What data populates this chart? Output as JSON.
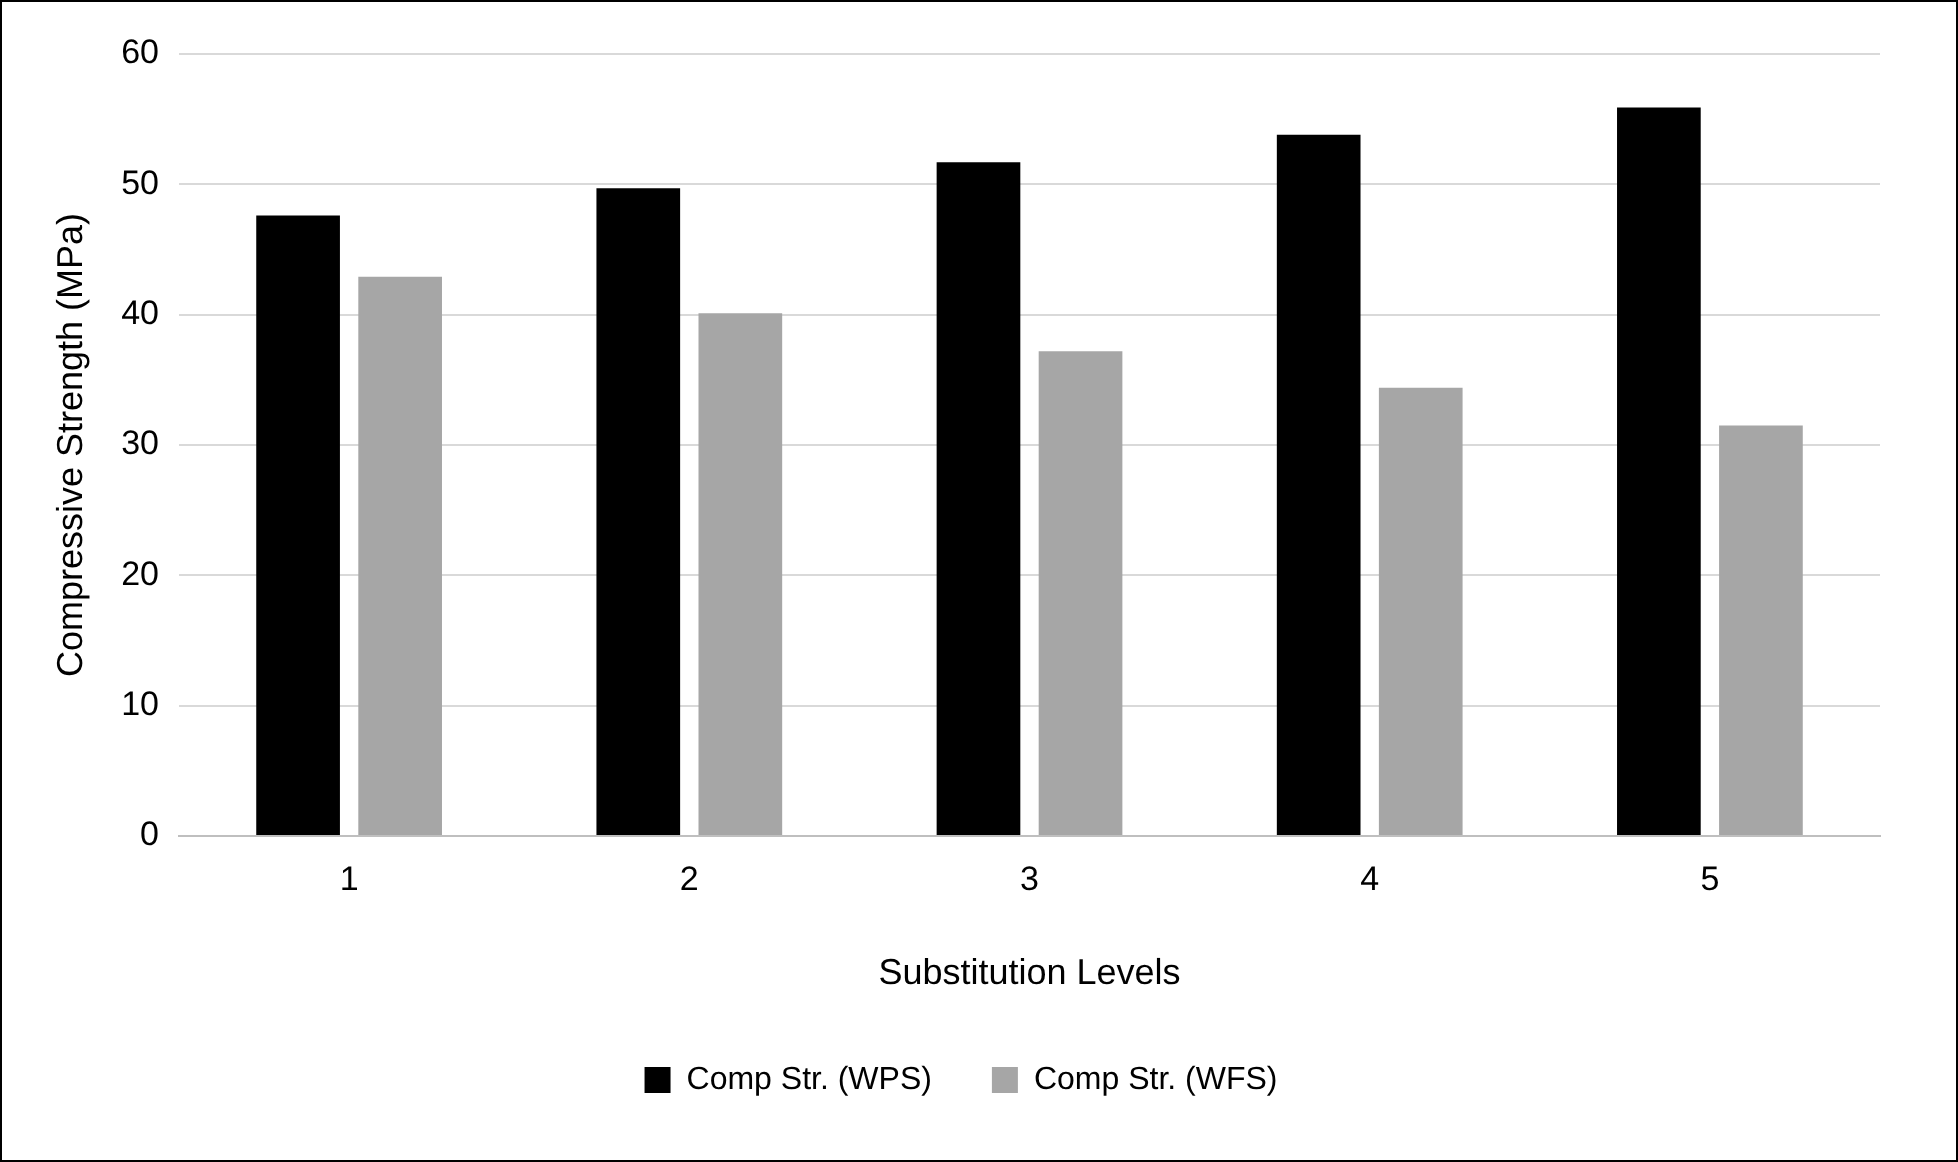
{
  "chart_data": {
    "type": "bar",
    "xlabel": "Substitution Levels",
    "ylabel": "Compressive Strength (MPa)",
    "categories": [
      "1",
      "2",
      "3",
      "4",
      "5"
    ],
    "series": [
      {
        "name": "Comp Str. (WPS)",
        "color": "#000000",
        "values": [
          47.6,
          49.7,
          51.7,
          53.8,
          55.9
        ]
      },
      {
        "name": "Comp Str. (WFS)",
        "color": "#a6a6a6",
        "values": [
          42.9,
          40.1,
          37.2,
          34.4,
          31.5
        ]
      }
    ],
    "ylim": [
      0,
      60
    ],
    "yticks": [
      0,
      10,
      20,
      30,
      40,
      50,
      60
    ],
    "grid": "y",
    "legend": "bottom"
  }
}
